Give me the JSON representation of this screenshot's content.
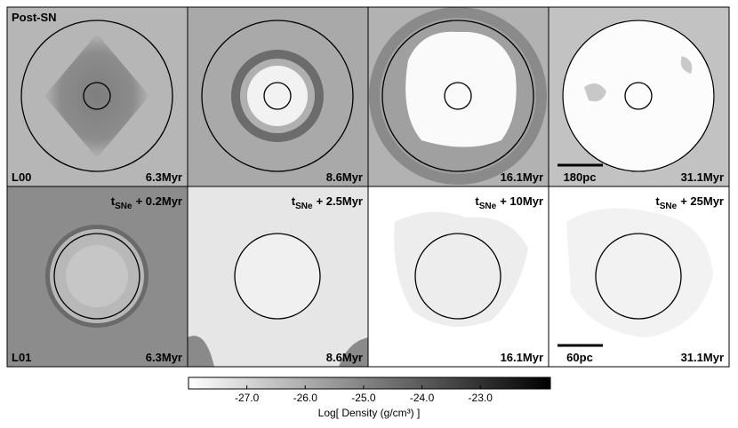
{
  "panels": [
    {
      "tag": "Post-SN",
      "run": "L00",
      "time": "6.3Myr"
    },
    {
      "time": "8.6Myr"
    },
    {
      "time": "16.1Myr"
    },
    {
      "time": "31.1Myr",
      "scale": "180pc"
    },
    {
      "run": "L01",
      "time": "6.3Myr",
      "delay": {
        "t": "t",
        "sub": "SNe",
        "text": "+ 0.2Myr"
      }
    },
    {
      "time": "8.6Myr",
      "delay": {
        "t": "t",
        "sub": "SNe",
        "text": "+ 2.5Myr"
      }
    },
    {
      "time": "16.1Myr",
      "delay": {
        "t": "t",
        "sub": "SNe",
        "text": "+ 10Myr"
      }
    },
    {
      "time": "31.1Myr",
      "scale": "60pc",
      "delay": {
        "t": "t",
        "sub": "SNe",
        "text": "+ 25Myr"
      }
    }
  ],
  "colorbar": {
    "label": "Log[ Density (g/cm³) ]",
    "range": [
      -28,
      -21.8
    ],
    "ticks": [
      {
        "value": -27,
        "label": "-27.0"
      },
      {
        "value": -26,
        "label": "-26.0"
      },
      {
        "value": -25,
        "label": "-25.0"
      },
      {
        "value": -24,
        "label": "-24.0"
      },
      {
        "value": -23,
        "label": "-23.0"
      }
    ]
  }
}
